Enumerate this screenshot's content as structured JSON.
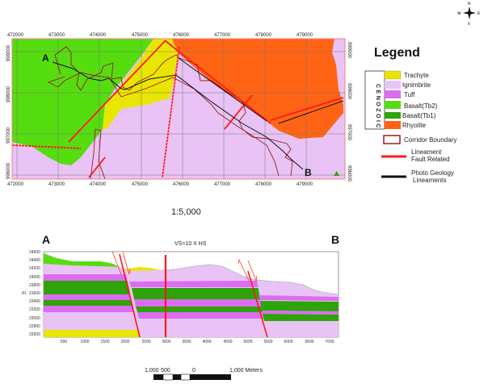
{
  "compass": {
    "n": "N",
    "s": "S",
    "e": "E",
    "w": "W"
  },
  "map": {
    "x_ticks": [
      "472000",
      "473000",
      "474000",
      "475000",
      "476000",
      "477000",
      "478000",
      "479000"
    ],
    "y_ticks": [
      "999000",
      "998000",
      "997000",
      "996000"
    ],
    "point_a": "A",
    "point_b": "B",
    "scale_ratio": "1:5,000"
  },
  "legend": {
    "title": "Legend",
    "era": "CENOZOIC",
    "units": [
      {
        "label": "Trachyte",
        "color": "#e8e600"
      },
      {
        "label": "Ignimbrite",
        "color": "#e9c3f5"
      },
      {
        "label": "Tuff",
        "color": "#dc6df0"
      },
      {
        "label": "Basalt(Tb2)",
        "color": "#55dd10"
      },
      {
        "label": "Basalt(Tb1)",
        "color": "#2ea30a"
      },
      {
        "label": "Rhyolite",
        "color": "#ff6414"
      }
    ],
    "corridor": "Corridor Boundary",
    "lineament_line1": "Lineament",
    "lineament_line2": "Fault Related",
    "photo_line1": "Photo Geology",
    "photo_line2": "Lineaments"
  },
  "section": {
    "start": "A",
    "end": "B",
    "title": "VS=10 X HS",
    "y_unit": "m",
    "y_ticks": [
      "24600",
      "24400",
      "24200",
      "24000",
      "23800",
      "23600",
      "23400",
      "23200",
      "23000",
      "22800",
      "22600"
    ],
    "x_ticks": [
      "500",
      "1000",
      "1500",
      "2000",
      "2500",
      "3000",
      "3500",
      "4000",
      "4500",
      "5000",
      "5500",
      "6000",
      "6500",
      "7000"
    ]
  },
  "scalebar": {
    "l1": "1,000",
    "l2": "500",
    "l3": "0",
    "l4": "1,000 Meters"
  }
}
